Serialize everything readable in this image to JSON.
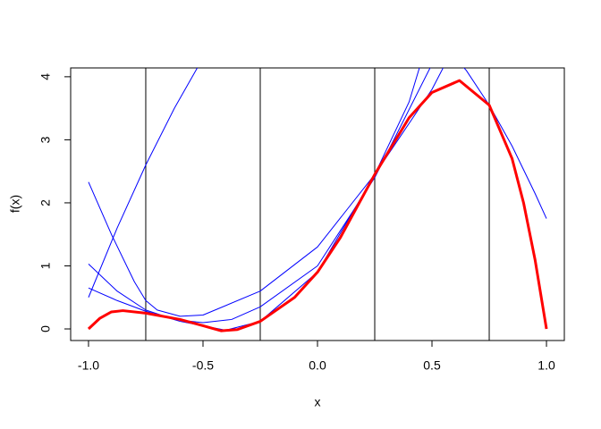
{
  "chart_data": {
    "type": "line",
    "xlabel": "x",
    "ylabel": "f(x)",
    "xlim": [
      -1.078,
      1.078
    ],
    "ylim": [
      -0.184,
      4.14
    ],
    "xticks": [
      {
        "value": -1,
        "label": "-1.0"
      },
      {
        "value": -0.5,
        "label": "-0.5"
      },
      {
        "value": 0,
        "label": "0.0"
      },
      {
        "value": 0.5,
        "label": "0.5"
      },
      {
        "value": 1,
        "label": "1.0"
      }
    ],
    "yticks": [
      0,
      1,
      2,
      3,
      4
    ],
    "vlines": [
      -0.75,
      -0.25,
      0.25,
      0.75
    ],
    "vline_color": "#000000",
    "series": [
      {
        "color": "#0000ff",
        "line_width": 1,
        "x": [
          -1,
          -0.875,
          -0.75,
          -0.625,
          -0.5
        ],
        "values": [
          0.5,
          1.6,
          2.6,
          3.5,
          4.3
        ]
      },
      {
        "color": "#0000ff",
        "line_width": 1,
        "x": [
          -1,
          -0.9,
          -0.8,
          -0.75,
          -0.7,
          -0.6,
          -0.5,
          -0.25,
          0,
          0.25,
          0.4,
          0.45
        ],
        "values": [
          2.33,
          1.5,
          0.75,
          0.45,
          0.3,
          0.2,
          0.22,
          0.6,
          1.3,
          2.45,
          3.6,
          4.2
        ]
      },
      {
        "color": "#0000ff",
        "line_width": 1,
        "x": [
          -1,
          -0.875,
          -0.75,
          -0.625,
          -0.5,
          -0.375,
          -0.25,
          0,
          0.25,
          0.375,
          0.5
        ],
        "values": [
          1.03,
          0.6,
          0.3,
          0.15,
          0.1,
          0.15,
          0.35,
          1.0,
          2.4,
          3.3,
          4.2
        ]
      },
      {
        "color": "#0000ff",
        "line_width": 1,
        "x": [
          -1,
          -0.875,
          -0.75,
          -0.6,
          -0.5,
          -0.4,
          -0.25,
          0,
          0.25,
          0.5,
          0.55
        ],
        "values": [
          0.65,
          0.45,
          0.28,
          0.12,
          0.05,
          -0.02,
          0.12,
          0.9,
          2.45,
          3.8,
          4.15
        ]
      },
      {
        "color": "#0000ff",
        "line_width": 1,
        "x": [
          0.6,
          0.65,
          0.75,
          0.85,
          0.95,
          1
        ],
        "values": [
          4.3,
          4.1,
          3.55,
          2.9,
          2.15,
          1.75
        ]
      },
      {
        "color": "#ff0000",
        "line_width": 3,
        "x": [
          -1,
          -0.95,
          -0.9,
          -0.85,
          -0.75,
          -0.6,
          -0.5,
          -0.42,
          -0.35,
          -0.25,
          -0.1,
          0,
          0.1,
          0.25,
          0.4,
          0.5,
          0.62,
          0.75,
          0.85,
          0.9,
          0.95,
          1
        ],
        "values": [
          0,
          0.17,
          0.27,
          0.29,
          0.25,
          0.15,
          0.05,
          -0.03,
          -0.01,
          0.12,
          0.5,
          0.9,
          1.45,
          2.45,
          3.35,
          3.75,
          3.94,
          3.55,
          2.7,
          2.0,
          1.1,
          0
        ]
      }
    ]
  }
}
